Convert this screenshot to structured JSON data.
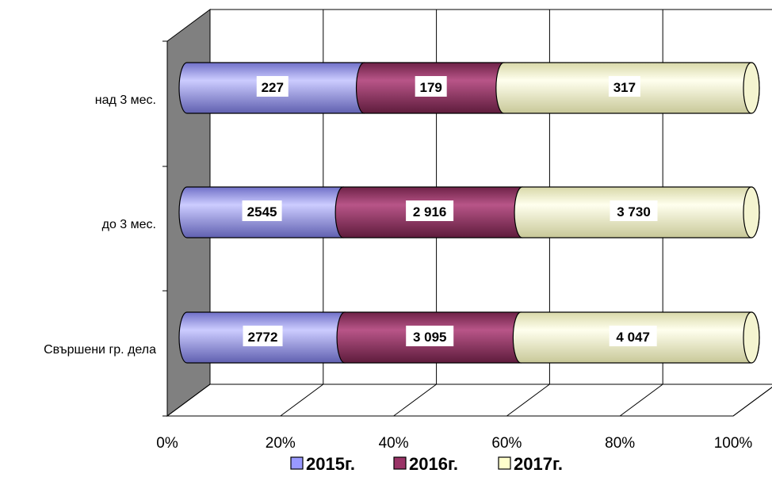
{
  "chart_data": {
    "type": "bar",
    "orientation": "horizontal",
    "stacked": "percent",
    "style": "3d-cylinder",
    "categories": [
      "над 3 мес.",
      "до 3 мес.",
      "Свършени гр. дела"
    ],
    "series": [
      {
        "name": "2015г.",
        "color": "#9999ff",
        "values": [
          227,
          2545,
          2772
        ],
        "labels": [
          "227",
          "2545",
          "2772"
        ]
      },
      {
        "name": "2016г.",
        "color": "#993366",
        "values": [
          179,
          2916,
          3095
        ],
        "labels": [
          "179",
          "2 916",
          "3 095"
        ]
      },
      {
        "name": "2017г.",
        "color": "#ffffcc",
        "values": [
          317,
          3730,
          4047
        ],
        "labels": [
          "317",
          "3 730",
          "4 047"
        ]
      }
    ],
    "x_ticks": [
      "0%",
      "20%",
      "40%",
      "60%",
      "80%",
      "100%"
    ],
    "xlim": [
      0,
      100
    ],
    "grid": true,
    "legend_position": "bottom",
    "wall_color": "#808080"
  }
}
